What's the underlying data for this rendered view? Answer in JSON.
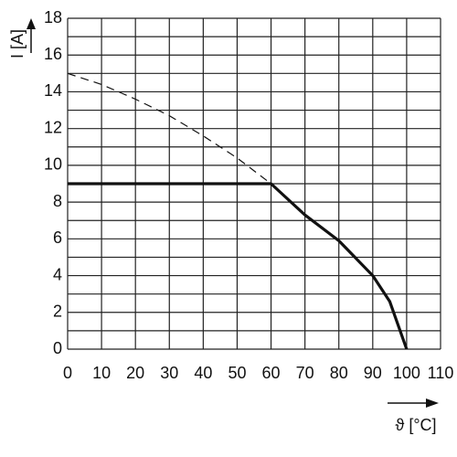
{
  "chart_data": {
    "type": "line",
    "x_label": "ϑ [°C]",
    "y_label": "I [A]",
    "x": [
      0,
      10,
      20,
      30,
      40,
      50,
      60,
      70,
      80,
      90,
      95,
      100
    ],
    "series": [
      {
        "color": "#111111",
        "style": "solid",
        "values": [
          9,
          9,
          9,
          9,
          9,
          9,
          9,
          7.3,
          5.9,
          4.0,
          2.6,
          0
        ]
      },
      {
        "color": "#111111",
        "style": "dashed",
        "values": [
          15,
          14.4,
          13.6,
          12.7,
          11.6,
          10.4,
          9,
          null,
          null,
          null,
          null,
          null
        ]
      }
    ],
    "xlim": [
      0,
      110
    ],
    "ylim": [
      0,
      18
    ],
    "xticks": [
      0,
      10,
      20,
      30,
      40,
      50,
      60,
      70,
      80,
      90,
      100,
      110
    ],
    "yticks": [
      0,
      2,
      4,
      6,
      8,
      10,
      12,
      14,
      16,
      18
    ],
    "grid": true
  }
}
